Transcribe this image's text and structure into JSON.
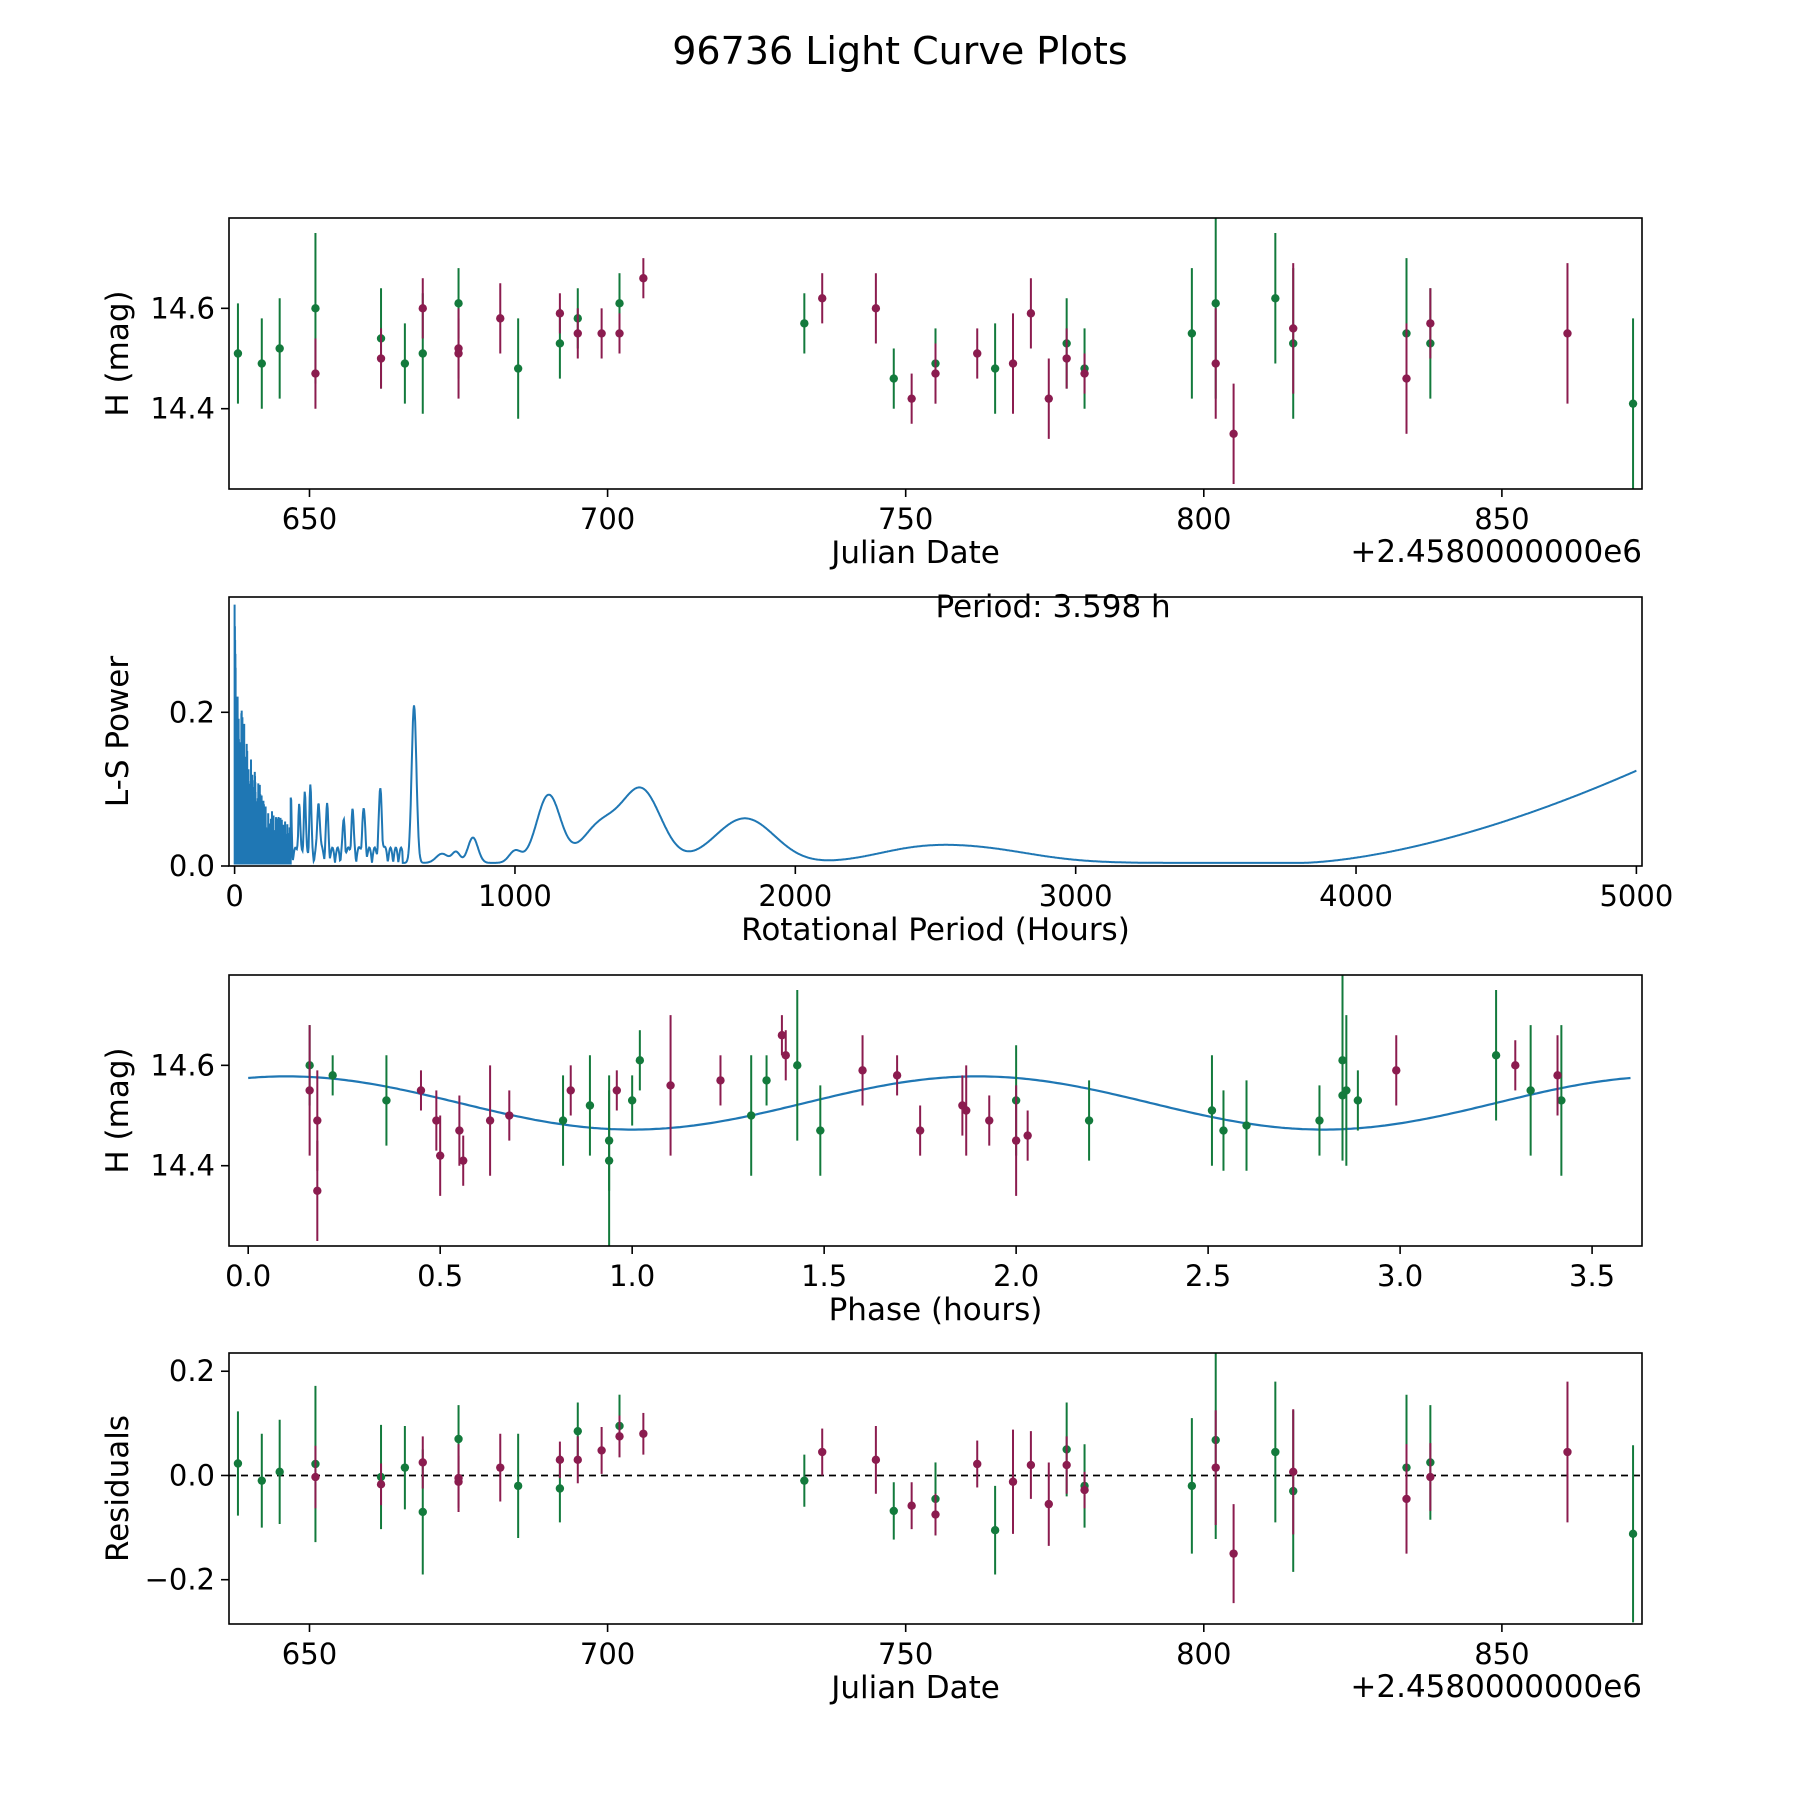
{
  "title": "96736 Light Curve Plots",
  "colors": {
    "green": "#137a3c",
    "purple": "#8b1c4f",
    "line": "#1f77b4",
    "axis": "#000000"
  },
  "chart_data": [
    {
      "id": "lc",
      "type": "scatter",
      "ylabel": "H (mag)",
      "xlabel": "Julian Date",
      "offset_label": "+2.4580000000e6",
      "xlim": [
        636.5,
        873.5
      ],
      "ylim": [
        14.24,
        14.78
      ],
      "yinvert": false,
      "xticks": [
        650,
        700,
        750,
        800,
        850
      ],
      "xticklabels": [
        "650",
        "700",
        "750",
        "800",
        "850"
      ],
      "yticks": [
        14.4,
        14.6
      ],
      "yticklabels": [
        "14.4",
        "14.6"
      ],
      "series": [
        {
          "name": "green",
          "color": "green",
          "points": [
            [
              638,
              14.51,
              0.1
            ],
            [
              642,
              14.49,
              0.09
            ],
            [
              645,
              14.52,
              0.1
            ],
            [
              651,
              14.6,
              0.15
            ],
            [
              662,
              14.54,
              0.1
            ],
            [
              666,
              14.49,
              0.08
            ],
            [
              669,
              14.51,
              0.12
            ],
            [
              675,
              14.61,
              0.07
            ],
            [
              685,
              14.48,
              0.1
            ],
            [
              692,
              14.53,
              0.07
            ],
            [
              695,
              14.58,
              0.06
            ],
            [
              702,
              14.61,
              0.06
            ],
            [
              733,
              14.57,
              0.06
            ],
            [
              748,
              14.46,
              0.06
            ],
            [
              755,
              14.49,
              0.07
            ],
            [
              765,
              14.48,
              0.09
            ],
            [
              777,
              14.53,
              0.09
            ],
            [
              780,
              14.48,
              0.08
            ],
            [
              798,
              14.55,
              0.13
            ],
            [
              802,
              14.61,
              0.19
            ],
            [
              812,
              14.62,
              0.13
            ],
            [
              815,
              14.53,
              0.15
            ],
            [
              834,
              14.55,
              0.15
            ],
            [
              838,
              14.53,
              0.11
            ],
            [
              872,
              14.41,
              0.17
            ]
          ]
        },
        {
          "name": "purple",
          "color": "purple",
          "points": [
            [
              651,
              14.47,
              0.07
            ],
            [
              662,
              14.5,
              0.06
            ],
            [
              669,
              14.6,
              0.06
            ],
            [
              675,
              14.52,
              0.06
            ],
            [
              675,
              14.51,
              0.09
            ],
            [
              682,
              14.58,
              0.07
            ],
            [
              692,
              14.59,
              0.04
            ],
            [
              695,
              14.55,
              0.05
            ],
            [
              699,
              14.55,
              0.05
            ],
            [
              702,
              14.55,
              0.04
            ],
            [
              706,
              14.66,
              0.04
            ],
            [
              736,
              14.62,
              0.05
            ],
            [
              745,
              14.6,
              0.07
            ],
            [
              751,
              14.42,
              0.05
            ],
            [
              755,
              14.47,
              0.06
            ],
            [
              762,
              14.51,
              0.05
            ],
            [
              768,
              14.49,
              0.1
            ],
            [
              771,
              14.59,
              0.07
            ],
            [
              774,
              14.42,
              0.08
            ],
            [
              777,
              14.5,
              0.06
            ],
            [
              780,
              14.47,
              0.04
            ],
            [
              802,
              14.49,
              0.11
            ],
            [
              805,
              14.35,
              0.1
            ],
            [
              815,
              14.56,
              0.13
            ],
            [
              834,
              14.46,
              0.11
            ],
            [
              838,
              14.57,
              0.07
            ],
            [
              861,
              14.55,
              0.14
            ]
          ]
        }
      ]
    },
    {
      "id": "ls",
      "type": "line",
      "annotation": "Period: 3.598 h",
      "ylabel": "L-S Power",
      "xlabel": "Rotational Period (Hours)",
      "xlim": [
        -20,
        5020
      ],
      "ylim": [
        0,
        0.35
      ],
      "xticks": [
        0,
        1000,
        2000,
        3000,
        4000,
        5000
      ],
      "xticklabels": [
        "0",
        "1000",
        "2000",
        "3000",
        "4000",
        "5000"
      ],
      "yticks": [
        0.0,
        0.2
      ],
      "yticklabels": [
        "0.0",
        "0.2"
      ],
      "peaks": [
        [
          1120,
          0.088,
          60
        ],
        [
          1300,
          0.045,
          90
        ],
        [
          1450,
          0.095,
          100
        ],
        [
          1820,
          0.058,
          150
        ],
        [
          2620,
          0.02,
          300
        ],
        [
          2400,
          0.008,
          200
        ],
        [
          850,
          0.033,
          25
        ],
        [
          1000,
          0.015,
          30
        ],
        [
          740,
          0.012,
          30
        ],
        [
          790,
          0.014,
          20
        ]
      ],
      "rise": [
        3800,
        5000,
        0.12
      ],
      "spike_peaks": [
        [
          640,
          0.205,
          12
        ],
        [
          520,
          0.078,
          8
        ],
        [
          460,
          0.052,
          8
        ],
        [
          420,
          0.055,
          6
        ],
        [
          390,
          0.04,
          6
        ],
        [
          330,
          0.058,
          6
        ],
        [
          300,
          0.072,
          6
        ],
        [
          270,
          0.085,
          5
        ],
        [
          230,
          0.065,
          5
        ],
        [
          250,
          0.078,
          5
        ],
        [
          200,
          0.085,
          4
        ]
      ]
    },
    {
      "id": "phase",
      "type": "scatter",
      "ylabel": "H (mag)",
      "xlabel": "Phase (hours)",
      "xlim": [
        -0.05,
        3.63
      ],
      "ylim": [
        14.24,
        14.78
      ],
      "xticks": [
        0.0,
        0.5,
        1.0,
        1.5,
        2.0,
        2.5,
        3.0,
        3.5
      ],
      "xticklabels": [
        "0.0",
        "0.5",
        "1.0",
        "1.5",
        "2.0",
        "2.5",
        "3.0",
        "3.5"
      ],
      "yticks": [
        14.4,
        14.6
      ],
      "yticklabels": [
        "14.4",
        "14.6"
      ],
      "model": {
        "mean": 14.525,
        "amp": 0.053,
        "period": 1.8,
        "phase0": 0.5
      },
      "series": [
        {
          "name": "green",
          "color": "green",
          "points": [
            [
              0.16,
              14.6,
              0.08
            ],
            [
              0.22,
              14.58,
              0.04
            ],
            [
              0.36,
              14.53,
              0.09
            ],
            [
              0.82,
              14.49,
              0.09
            ],
            [
              0.89,
              14.52,
              0.1
            ],
            [
              0.94,
              14.45,
              0.1
            ],
            [
              0.94,
              14.41,
              0.17
            ],
            [
              1.0,
              14.53,
              0.05
            ],
            [
              1.02,
              14.61,
              0.06
            ],
            [
              1.31,
              14.5,
              0.12
            ],
            [
              1.35,
              14.57,
              0.05
            ],
            [
              1.43,
              14.6,
              0.15
            ],
            [
              1.49,
              14.47,
              0.09
            ],
            [
              2.0,
              14.53,
              0.11
            ],
            [
              2.19,
              14.49,
              0.08
            ],
            [
              2.51,
              14.51,
              0.11
            ],
            [
              2.54,
              14.47,
              0.08
            ],
            [
              2.6,
              14.48,
              0.09
            ],
            [
              2.79,
              14.49,
              0.07
            ],
            [
              2.85,
              14.61,
              0.19
            ],
            [
              2.85,
              14.54,
              0.13
            ],
            [
              2.86,
              14.55,
              0.15
            ],
            [
              2.89,
              14.53,
              0.06
            ],
            [
              3.25,
              14.62,
              0.13
            ],
            [
              3.34,
              14.55,
              0.13
            ],
            [
              3.42,
              14.53,
              0.15
            ]
          ]
        },
        {
          "name": "purple",
          "color": "purple",
          "points": [
            [
              0.16,
              14.55,
              0.13
            ],
            [
              0.18,
              14.49,
              0.1
            ],
            [
              0.18,
              14.35,
              0.1
            ],
            [
              0.45,
              14.55,
              0.04
            ],
            [
              0.49,
              14.49,
              0.06
            ],
            [
              0.5,
              14.42,
              0.08
            ],
            [
              0.55,
              14.47,
              0.07
            ],
            [
              0.56,
              14.41,
              0.05
            ],
            [
              0.63,
              14.49,
              0.11
            ],
            [
              0.68,
              14.5,
              0.05
            ],
            [
              0.84,
              14.55,
              0.05
            ],
            [
              0.96,
              14.55,
              0.04
            ],
            [
              1.1,
              14.56,
              0.14
            ],
            [
              1.23,
              14.57,
              0.05
            ],
            [
              1.39,
              14.66,
              0.04
            ],
            [
              1.4,
              14.62,
              0.05
            ],
            [
              1.6,
              14.59,
              0.07
            ],
            [
              1.69,
              14.58,
              0.04
            ],
            [
              1.75,
              14.47,
              0.05
            ],
            [
              1.86,
              14.52,
              0.06
            ],
            [
              1.87,
              14.51,
              0.09
            ],
            [
              1.93,
              14.49,
              0.05
            ],
            [
              2.0,
              14.45,
              0.11
            ],
            [
              2.03,
              14.46,
              0.05
            ],
            [
              2.99,
              14.59,
              0.07
            ],
            [
              3.3,
              14.6,
              0.05
            ],
            [
              3.41,
              14.58,
              0.08
            ]
          ]
        }
      ]
    },
    {
      "id": "res",
      "type": "scatter",
      "ylabel": "Residuals",
      "xlabel": "Julian Date",
      "offset_label": "+2.4580000000e6",
      "xlim": [
        636.5,
        873.5
      ],
      "ylim": [
        -0.285,
        0.235
      ],
      "xticks": [
        650,
        700,
        750,
        800,
        850
      ],
      "xticklabels": [
        "650",
        "700",
        "750",
        "800",
        "850"
      ],
      "yticks": [
        -0.2,
        0.0,
        0.2
      ],
      "yticklabels": [
        "−0.2",
        "0.0",
        "0.2"
      ],
      "zero_line": 0,
      "series": [
        {
          "name": "green",
          "color": "green",
          "points": [
            [
              638,
              0.023,
              0.1
            ],
            [
              642,
              -0.01,
              0.09
            ],
            [
              645,
              0.007,
              0.1
            ],
            [
              651,
              0.022,
              0.15
            ],
            [
              662,
              -0.003,
              0.1
            ],
            [
              666,
              0.015,
              0.08
            ],
            [
              669,
              -0.07,
              0.12
            ],
            [
              675,
              0.07,
              0.065
            ],
            [
              685,
              -0.02,
              0.1
            ],
            [
              692,
              -0.025,
              0.065
            ],
            [
              695,
              0.085,
              0.055
            ],
            [
              702,
              0.095,
              0.06
            ],
            [
              733,
              -0.01,
              0.05
            ],
            [
              748,
              -0.068,
              0.055
            ],
            [
              755,
              -0.045,
              0.07
            ],
            [
              765,
              -0.105,
              0.085
            ],
            [
              777,
              0.05,
              0.09
            ],
            [
              780,
              -0.02,
              0.08
            ],
            [
              798,
              -0.02,
              0.13
            ],
            [
              802,
              0.068,
              0.19
            ],
            [
              812,
              0.045,
              0.135
            ],
            [
              815,
              -0.03,
              0.155
            ],
            [
              834,
              0.015,
              0.14
            ],
            [
              838,
              0.025,
              0.11
            ],
            [
              872,
              -0.112,
              0.17
            ]
          ]
        },
        {
          "name": "purple",
          "color": "purple",
          "points": [
            [
              651,
              -0.003,
              0.06
            ],
            [
              662,
              -0.017,
              0.04
            ],
            [
              669,
              0.025,
              0.05
            ],
            [
              675,
              -0.012,
              0.05
            ],
            [
              675,
              -0.005,
              0.065
            ],
            [
              682,
              0.015,
              0.065
            ],
            [
              692,
              0.03,
              0.035
            ],
            [
              695,
              0.03,
              0.045
            ],
            [
              699,
              0.048,
              0.045
            ],
            [
              702,
              0.075,
              0.04
            ],
            [
              706,
              0.08,
              0.04
            ],
            [
              736,
              0.045,
              0.045
            ],
            [
              745,
              0.03,
              0.065
            ],
            [
              751,
              -0.058,
              0.045
            ],
            [
              755,
              -0.075,
              0.04
            ],
            [
              762,
              0.022,
              0.045
            ],
            [
              768,
              -0.012,
              0.1
            ],
            [
              771,
              0.02,
              0.065
            ],
            [
              774,
              -0.055,
              0.08
            ],
            [
              777,
              0.02,
              0.055
            ],
            [
              780,
              -0.028,
              0.035
            ],
            [
              802,
              0.015,
              0.11
            ],
            [
              805,
              -0.15,
              0.095
            ],
            [
              815,
              0.007,
              0.12
            ],
            [
              834,
              -0.045,
              0.105
            ],
            [
              838,
              -0.003,
              0.065
            ],
            [
              861,
              0.045,
              0.135
            ]
          ]
        }
      ]
    }
  ]
}
